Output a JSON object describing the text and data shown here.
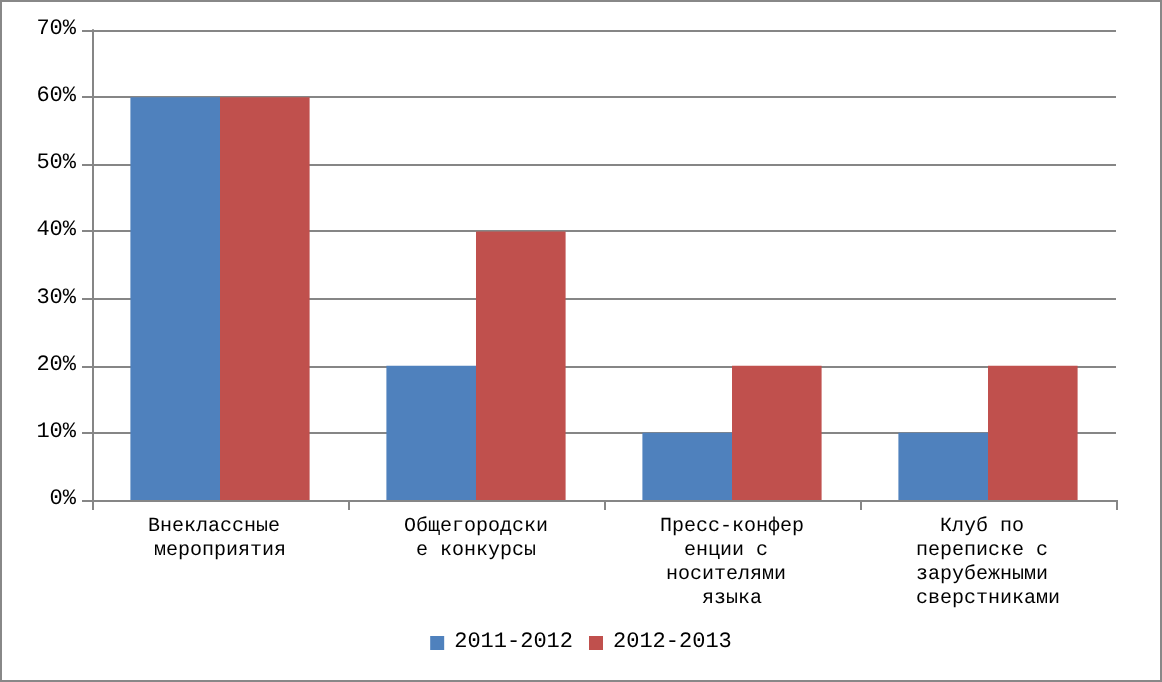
{
  "chart_data": {
    "type": "bar",
    "categories": [
      "Внеклассные мероприятия",
      "Общегородские конкурсы",
      "Пресс-конференции с носителями языка",
      "Клуб по переписке с зарубежными сверстниками"
    ],
    "series": [
      {
        "name": "2011-2012",
        "color": "#4f81bd",
        "values": [
          60,
          20,
          10,
          10
        ]
      },
      {
        "name": "2012-2013",
        "color": "#c0504d",
        "values": [
          60,
          40,
          20,
          20
        ]
      }
    ],
    "ylim": [
      0,
      70
    ],
    "yticks": [
      {
        "value": 0,
        "label": "0%"
      },
      {
        "value": 10,
        "label": "10%"
      },
      {
        "value": 20,
        "label": "20%"
      },
      {
        "value": 30,
        "label": "30%"
      },
      {
        "value": 40,
        "label": "40%"
      },
      {
        "value": 50,
        "label": "50%"
      },
      {
        "value": 60,
        "label": "60%"
      },
      {
        "value": 70,
        "label": "70%"
      }
    ],
    "grid": "y",
    "legend": "bottom"
  }
}
